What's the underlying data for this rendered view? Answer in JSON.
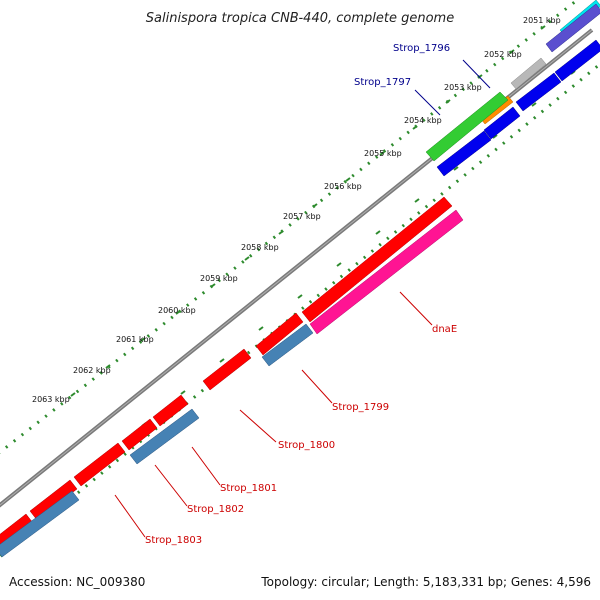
{
  "title": "Salinispora tropica CNB-440, complete genome",
  "accession": "Accession: NC_009380",
  "topology": "Topology: circular; Length: 5,183,331 bp; Genes: 4,596",
  "colors": {
    "backbone": "#7a7a7a",
    "tick_dots": "#2e8b2e",
    "red_gene": "#ff0000",
    "steel_gene": "#4682b4",
    "blue_gene": "#0000ee",
    "pink_gene": "#ff1493",
    "green_gene": "#33cc33",
    "orange_gene": "#ff8c00",
    "cyan_gene": "#00e5ee",
    "gray_gene": "#b8b8b8",
    "blue_label": "#00008b",
    "red_label": "#cc0000"
  },
  "scale_labels": [
    "2051 kbp",
    "2052 kbp",
    "2053 kbp",
    "2054 kbp",
    "2055 kbp",
    "2056 kbp",
    "2057 kbp",
    "2058 kbp",
    "2059 kbp",
    "2060 kbp",
    "2061 kbp",
    "2062 kbp",
    "2063 kbp"
  ],
  "gene_labels": {
    "strop_1796": "Strop_1796",
    "strop_1797": "Strop_1797",
    "dnaE": "dnaE",
    "strop_1799": "Strop_1799",
    "strop_1800": "Strop_1800",
    "strop_1801": "Strop_1801",
    "strop_1802": "Strop_1802",
    "strop_1803": "Strop_1803"
  }
}
